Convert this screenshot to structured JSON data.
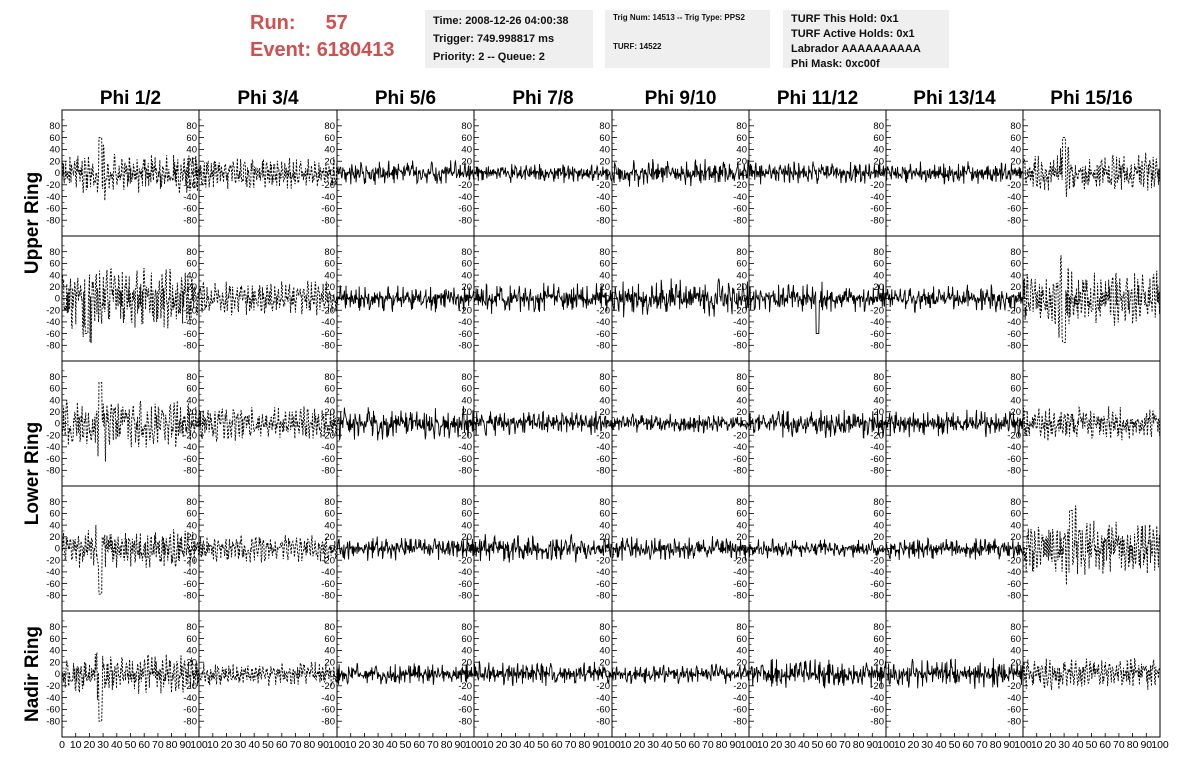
{
  "header": {
    "run_label": "Run:",
    "run_value": "57",
    "event_label": "Event:",
    "event_value": "6180413"
  },
  "time_box": {
    "line1": "Time: 2008-12-26 04:00:38",
    "line2": "Trigger: 749.998817 ms",
    "line3": "Priority: 2 -- Queue: 2"
  },
  "trig_box": {
    "line1": "Trig Num: 14513 -- Trig Type: PPS2",
    "line2": "TURF: 14522"
  },
  "turf_box": {
    "line1": "TURF This Hold: 0x1",
    "line2": "TURF Active Holds: 0x1",
    "line3": "Labrador AAAAAAAAAA",
    "line4": "Phi Mask: 0xc00f"
  },
  "chart_data": {
    "type": "line",
    "columns": [
      "Phi 1/2",
      "Phi 3/4",
      "Phi 5/6",
      "Phi 7/8",
      "Phi 9/10",
      "Phi 11/12",
      "Phi 13/14",
      "Phi 15/16"
    ],
    "rows": [
      "Upper Ring",
      "Upper Ring",
      "Lower Ring",
      "Lower Ring",
      "Nadir Ring"
    ],
    "row_labels": [
      {
        "text": "Upper Ring",
        "rows": [
          0,
          1
        ]
      },
      {
        "text": "Lower Ring",
        "rows": [
          2,
          3
        ]
      },
      {
        "text": "Nadir Ring",
        "rows": [
          4
        ]
      }
    ],
    "ylim": [
      -100,
      100
    ],
    "yticks": [
      -80,
      -60,
      -40,
      -20,
      0,
      20,
      40,
      60,
      80
    ],
    "xlim": [
      0,
      100
    ],
    "xtick_labels_first": [
      "0",
      "10",
      "20",
      "30",
      "40",
      "50",
      "60",
      "70",
      "80",
      "90",
      "100"
    ],
    "xtick_labels_other": [
      "10",
      "20",
      "30",
      "40",
      "50",
      "60",
      "70",
      "80",
      "90",
      "100"
    ],
    "panel_line_style": [
      [
        "dashed",
        "dashed",
        "solid",
        "solid",
        "solid",
        "solid",
        "solid",
        "dashed"
      ],
      [
        "dashed",
        "dashed",
        "solid",
        "solid",
        "solid",
        "solid",
        "solid",
        "dashed"
      ],
      [
        "dashed",
        "dashed",
        "solid",
        "solid",
        "solid",
        "solid",
        "solid",
        "dashed"
      ],
      [
        "dashed",
        "dashed",
        "solid",
        "solid",
        "solid",
        "solid",
        "solid",
        "dashed"
      ],
      [
        "dashed",
        "dashed",
        "solid",
        "solid",
        "solid",
        "solid",
        "solid",
        "dashed"
      ]
    ],
    "panel_amplitude": [
      [
        25,
        20,
        22,
        18,
        24,
        20,
        20,
        25
      ],
      [
        40,
        22,
        25,
        28,
        35,
        25,
        25,
        35
      ],
      [
        30,
        22,
        30,
        22,
        18,
        25,
        25,
        22
      ],
      [
        25,
        18,
        22,
        25,
        22,
        18,
        20,
        35
      ],
      [
        25,
        15,
        20,
        22,
        18,
        28,
        28,
        20
      ]
    ],
    "panel_peak": [
      [
        {
          "x": 28,
          "y": 60
        },
        null,
        null,
        null,
        null,
        null,
        null,
        {
          "x": 30,
          "y": 60
        }
      ],
      [
        {
          "x": 18,
          "y": -60
        },
        null,
        null,
        null,
        null,
        {
          "x": 50,
          "y": -60
        },
        null,
        {
          "x": 30,
          "y": -75
        }
      ],
      [
        {
          "x": 28,
          "y": 70
        },
        null,
        null,
        null,
        null,
        null,
        null,
        null
      ],
      [
        {
          "x": 28,
          "y": -78
        },
        null,
        null,
        null,
        null,
        null,
        null,
        {
          "x": 35,
          "y": 65
        }
      ],
      [
        {
          "x": 28,
          "y": -80
        },
        null,
        null,
        null,
        null,
        null,
        null,
        null
      ]
    ],
    "sample_rate_note": ""
  }
}
